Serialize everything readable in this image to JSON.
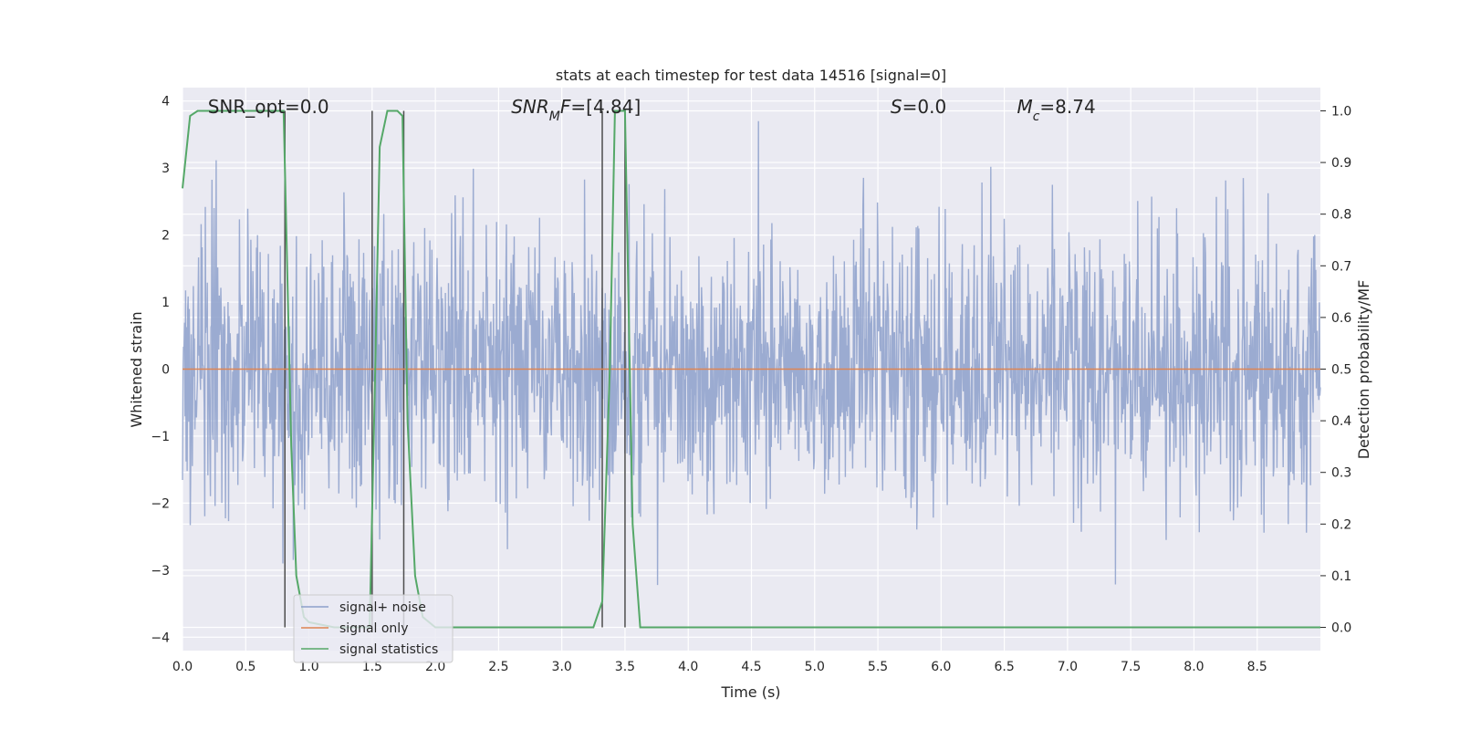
{
  "chart_data": {
    "type": "line",
    "title": "stats at each timestep for test data 14516 [signal=0]",
    "xlabel": "Time (s)",
    "ylabel": "Whitened strain",
    "y2label": "Detection probability/MF",
    "xlim": [
      0.0,
      9.0
    ],
    "ylim": [
      -4.2,
      4.2
    ],
    "y2lim": [
      -0.045,
      1.045
    ],
    "x_ticks": [
      0.0,
      0.5,
      1.0,
      1.5,
      2.0,
      2.5,
      3.0,
      3.5,
      4.0,
      4.5,
      5.0,
      5.5,
      6.0,
      6.5,
      7.0,
      7.5,
      8.0,
      8.5
    ],
    "x_tick_labels": [
      "0.0",
      "0.5",
      "1.0",
      "1.5",
      "2.0",
      "2.5",
      "3.0",
      "3.5",
      "4.0",
      "4.5",
      "5.0",
      "5.5",
      "6.0",
      "6.5",
      "7.0",
      "7.5",
      "8.0",
      "8.5"
    ],
    "y_ticks": [
      4,
      3,
      2,
      1,
      0,
      -1,
      -2,
      -3,
      -4
    ],
    "y_tick_labels": [
      "4",
      "3",
      "2",
      "1",
      "0",
      "−1",
      "−2",
      "−3",
      "−4"
    ],
    "y2_ticks": [
      1.0,
      0.9,
      0.8,
      0.7,
      0.6,
      0.5,
      0.4,
      0.3,
      0.2,
      0.1,
      0.0
    ],
    "y2_tick_labels": [
      "1.0",
      "0.9",
      "0.8",
      "0.7",
      "0.6",
      "0.5",
      "0.4",
      "0.3",
      "0.2",
      "0.1",
      "0.0"
    ],
    "grid": true,
    "legend_position": "lower-left",
    "annotations": [
      {
        "prefix": "SNR_opt=0.0",
        "sub": "",
        "suffix": "",
        "x": 0.2,
        "italic": false
      },
      {
        "prefix": "SNR",
        "sub": "M",
        "suffix": "F=[4.84]",
        "x": 2.6,
        "italic": true
      },
      {
        "prefix": "S",
        "sub": "",
        "suffix": "=0.0",
        "x": 5.6,
        "italic": true
      },
      {
        "prefix": "M",
        "sub": "c",
        "suffix": "=8.74",
        "x": 6.6,
        "italic": true
      }
    ],
    "vertical_markers": [
      0.81,
      1.5,
      1.75,
      3.32,
      3.5
    ],
    "series": [
      {
        "name": "signal+ noise",
        "color": "#8da0cb",
        "kind": "noise",
        "duration_s": 9.0,
        "approx_std": 1.0,
        "approx_peak_abs": 3.7
      },
      {
        "name": "signal only",
        "color": "#dd8452",
        "kind": "line",
        "x": [
          0.0,
          9.0
        ],
        "y": [
          0.0,
          0.0
        ]
      },
      {
        "name": "signal statistics",
        "color": "#55a868",
        "kind": "line",
        "axis": "right",
        "x": [
          0.0,
          0.06,
          0.12,
          0.3,
          0.5,
          0.7,
          0.8,
          0.86,
          0.9,
          0.96,
          1.0,
          1.2,
          1.4,
          1.48,
          1.52,
          1.56,
          1.62,
          1.7,
          1.74,
          1.78,
          1.84,
          1.9,
          2.0,
          2.5,
          3.0,
          3.25,
          3.32,
          3.38,
          3.42,
          3.5,
          3.56,
          3.62,
          4.0,
          5.0,
          6.0,
          7.0,
          8.0,
          9.0
        ],
        "y": [
          0.85,
          0.99,
          1.0,
          1.0,
          1.0,
          1.0,
          1.0,
          0.35,
          0.1,
          0.02,
          0.01,
          0.0,
          0.0,
          0.0,
          0.45,
          0.93,
          1.0,
          1.0,
          0.99,
          0.4,
          0.1,
          0.02,
          0.0,
          0.0,
          0.0,
          0.0,
          0.05,
          0.5,
          1.0,
          1.0,
          0.2,
          0.0,
          0.0,
          0.0,
          0.0,
          0.0,
          0.0,
          0.0
        ]
      }
    ]
  }
}
